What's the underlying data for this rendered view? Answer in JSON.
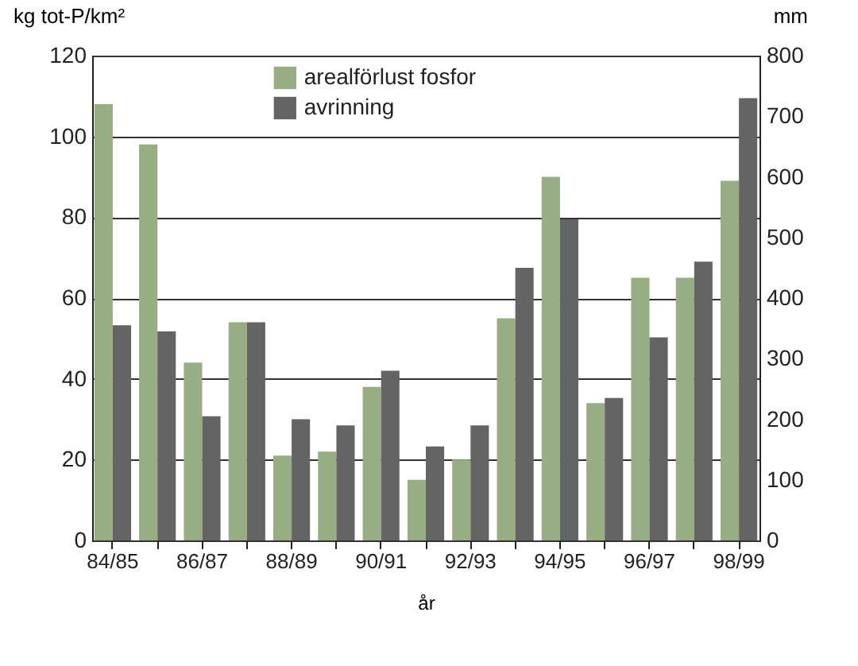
{
  "chart_data": {
    "type": "bar",
    "xlabel": "år",
    "ylabel": "kg tot-P/km²",
    "y2label": "mm",
    "categories": [
      "84/85",
      null,
      "86/87",
      null,
      "88/89",
      null,
      "90/91",
      null,
      "92/93",
      null,
      "94/95",
      null,
      "96/97",
      null,
      "98/99"
    ],
    "series": [
      {
        "name": "arealförlust fosfor",
        "color": "#97ae82",
        "values": [
          108,
          98,
          44,
          54,
          21,
          22,
          38,
          15,
          20,
          55,
          90,
          34,
          65,
          65,
          89
        ]
      },
      {
        "name": "avrinning",
        "color": "#646464",
        "axis": "y2",
        "values": [
          355,
          345,
          205,
          360,
          200,
          190,
          280,
          155,
          190,
          450,
          530,
          235,
          335,
          460,
          730
        ]
      }
    ],
    "ylim": [
      0,
      120
    ],
    "yticks": [
      0,
      20,
      40,
      60,
      80,
      100,
      120
    ],
    "y2lim": [
      0,
      800
    ],
    "y2ticks": [
      0,
      100,
      200,
      300,
      400,
      500,
      600,
      700,
      800
    ],
    "grid": "y",
    "legend": "top"
  }
}
